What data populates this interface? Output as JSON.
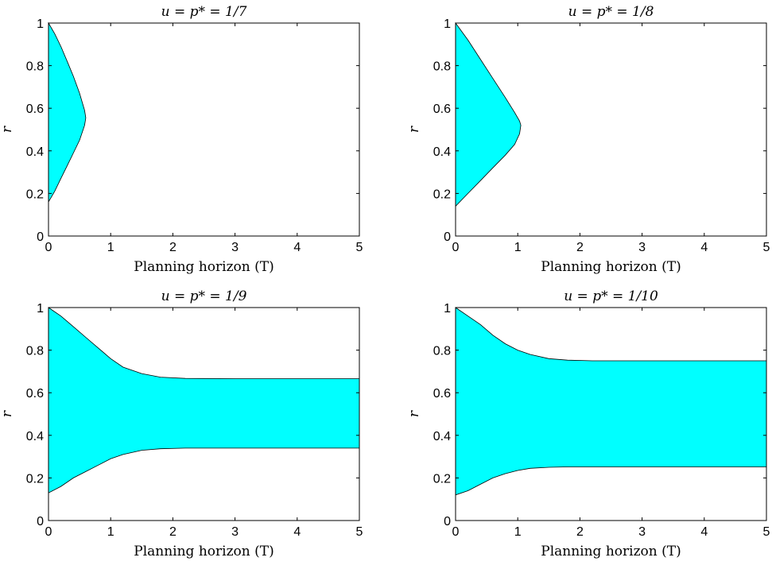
{
  "chart_data": [
    {
      "type": "area",
      "title": "u = p* = 1/7",
      "xlabel": "Planning horizon (T)",
      "ylabel": "r",
      "xlim": [
        0,
        5
      ],
      "ylim": [
        0,
        1
      ],
      "xticks": [
        "0",
        "1",
        "2",
        "3",
        "4",
        "5"
      ],
      "yticks": [
        "0",
        "0.2",
        "0.4",
        "0.6",
        "0.8",
        "1"
      ],
      "fill_color": "#00ffff",
      "region": {
        "upper": [
          [
            0,
            1.0
          ],
          [
            0.1,
            0.95
          ],
          [
            0.2,
            0.89
          ],
          [
            0.3,
            0.82
          ],
          [
            0.4,
            0.75
          ],
          [
            0.5,
            0.67
          ],
          [
            0.58,
            0.59
          ],
          [
            0.6,
            0.555
          ]
        ],
        "lower": [
          [
            0,
            0.16
          ],
          [
            0.1,
            0.21
          ],
          [
            0.2,
            0.27
          ],
          [
            0.3,
            0.33
          ],
          [
            0.4,
            0.39
          ],
          [
            0.5,
            0.45
          ],
          [
            0.58,
            0.52
          ],
          [
            0.6,
            0.555
          ]
        ]
      }
    },
    {
      "type": "area",
      "title": "u = p* = 1/8",
      "xlabel": "Planning horizon (T)",
      "ylabel": "r",
      "xlim": [
        0,
        5
      ],
      "ylim": [
        0,
        1
      ],
      "xticks": [
        "0",
        "1",
        "2",
        "3",
        "4",
        "5"
      ],
      "yticks": [
        "0",
        "0.2",
        "0.4",
        "0.6",
        "0.8",
        "1"
      ],
      "fill_color": "#00ffff",
      "region": {
        "upper": [
          [
            0,
            1.0
          ],
          [
            0.2,
            0.92
          ],
          [
            0.4,
            0.83
          ],
          [
            0.6,
            0.74
          ],
          [
            0.8,
            0.65
          ],
          [
            0.95,
            0.58
          ],
          [
            1.03,
            0.54
          ],
          [
            1.05,
            0.52
          ]
        ],
        "lower": [
          [
            0,
            0.14
          ],
          [
            0.2,
            0.2
          ],
          [
            0.4,
            0.26
          ],
          [
            0.6,
            0.32
          ],
          [
            0.8,
            0.38
          ],
          [
            0.95,
            0.43
          ],
          [
            1.03,
            0.48
          ],
          [
            1.05,
            0.52
          ]
        ]
      }
    },
    {
      "type": "area",
      "title": "u = p* = 1/9",
      "xlabel": "Planning horizon (T)",
      "ylabel": "r",
      "xlim": [
        0,
        5
      ],
      "ylim": [
        0,
        1
      ],
      "xticks": [
        "0",
        "1",
        "2",
        "3",
        "4",
        "5"
      ],
      "yticks": [
        "0",
        "0.2",
        "0.4",
        "0.6",
        "0.8",
        "1"
      ],
      "fill_color": "#00ffff",
      "region": {
        "upper": [
          [
            0,
            1.0
          ],
          [
            0.2,
            0.96
          ],
          [
            0.4,
            0.91
          ],
          [
            0.6,
            0.86
          ],
          [
            0.8,
            0.81
          ],
          [
            1.0,
            0.76
          ],
          [
            1.2,
            0.72
          ],
          [
            1.5,
            0.69
          ],
          [
            1.8,
            0.673
          ],
          [
            2.2,
            0.667
          ],
          [
            3,
            0.666
          ],
          [
            5,
            0.666
          ]
        ],
        "lower": [
          [
            0,
            0.13
          ],
          [
            0.2,
            0.16
          ],
          [
            0.4,
            0.2
          ],
          [
            0.6,
            0.23
          ],
          [
            0.8,
            0.26
          ],
          [
            1.0,
            0.29
          ],
          [
            1.2,
            0.31
          ],
          [
            1.5,
            0.33
          ],
          [
            1.8,
            0.337
          ],
          [
            2.2,
            0.34
          ],
          [
            3,
            0.34
          ],
          [
            5,
            0.34
          ]
        ]
      }
    },
    {
      "type": "area",
      "title": "u = p* = 1/10",
      "xlabel": "Planning horizon (T)",
      "ylabel": "r",
      "xlim": [
        0,
        5
      ],
      "ylim": [
        0,
        1
      ],
      "xticks": [
        "0",
        "1",
        "2",
        "3",
        "4",
        "5"
      ],
      "yticks": [
        "0",
        "0.2",
        "0.4",
        "0.6",
        "0.8",
        "1"
      ],
      "fill_color": "#00ffff",
      "region": {
        "upper": [
          [
            0,
            1.0
          ],
          [
            0.2,
            0.96
          ],
          [
            0.4,
            0.92
          ],
          [
            0.6,
            0.87
          ],
          [
            0.8,
            0.83
          ],
          [
            1.0,
            0.8
          ],
          [
            1.2,
            0.78
          ],
          [
            1.5,
            0.76
          ],
          [
            1.8,
            0.753
          ],
          [
            2.2,
            0.75
          ],
          [
            3,
            0.75
          ],
          [
            5,
            0.75
          ]
        ],
        "lower": [
          [
            0,
            0.12
          ],
          [
            0.2,
            0.14
          ],
          [
            0.4,
            0.17
          ],
          [
            0.6,
            0.2
          ],
          [
            0.8,
            0.22
          ],
          [
            1.0,
            0.235
          ],
          [
            1.2,
            0.245
          ],
          [
            1.5,
            0.25
          ],
          [
            1.8,
            0.252
          ],
          [
            2.2,
            0.252
          ],
          [
            3,
            0.252
          ],
          [
            5,
            0.252
          ]
        ]
      }
    }
  ]
}
